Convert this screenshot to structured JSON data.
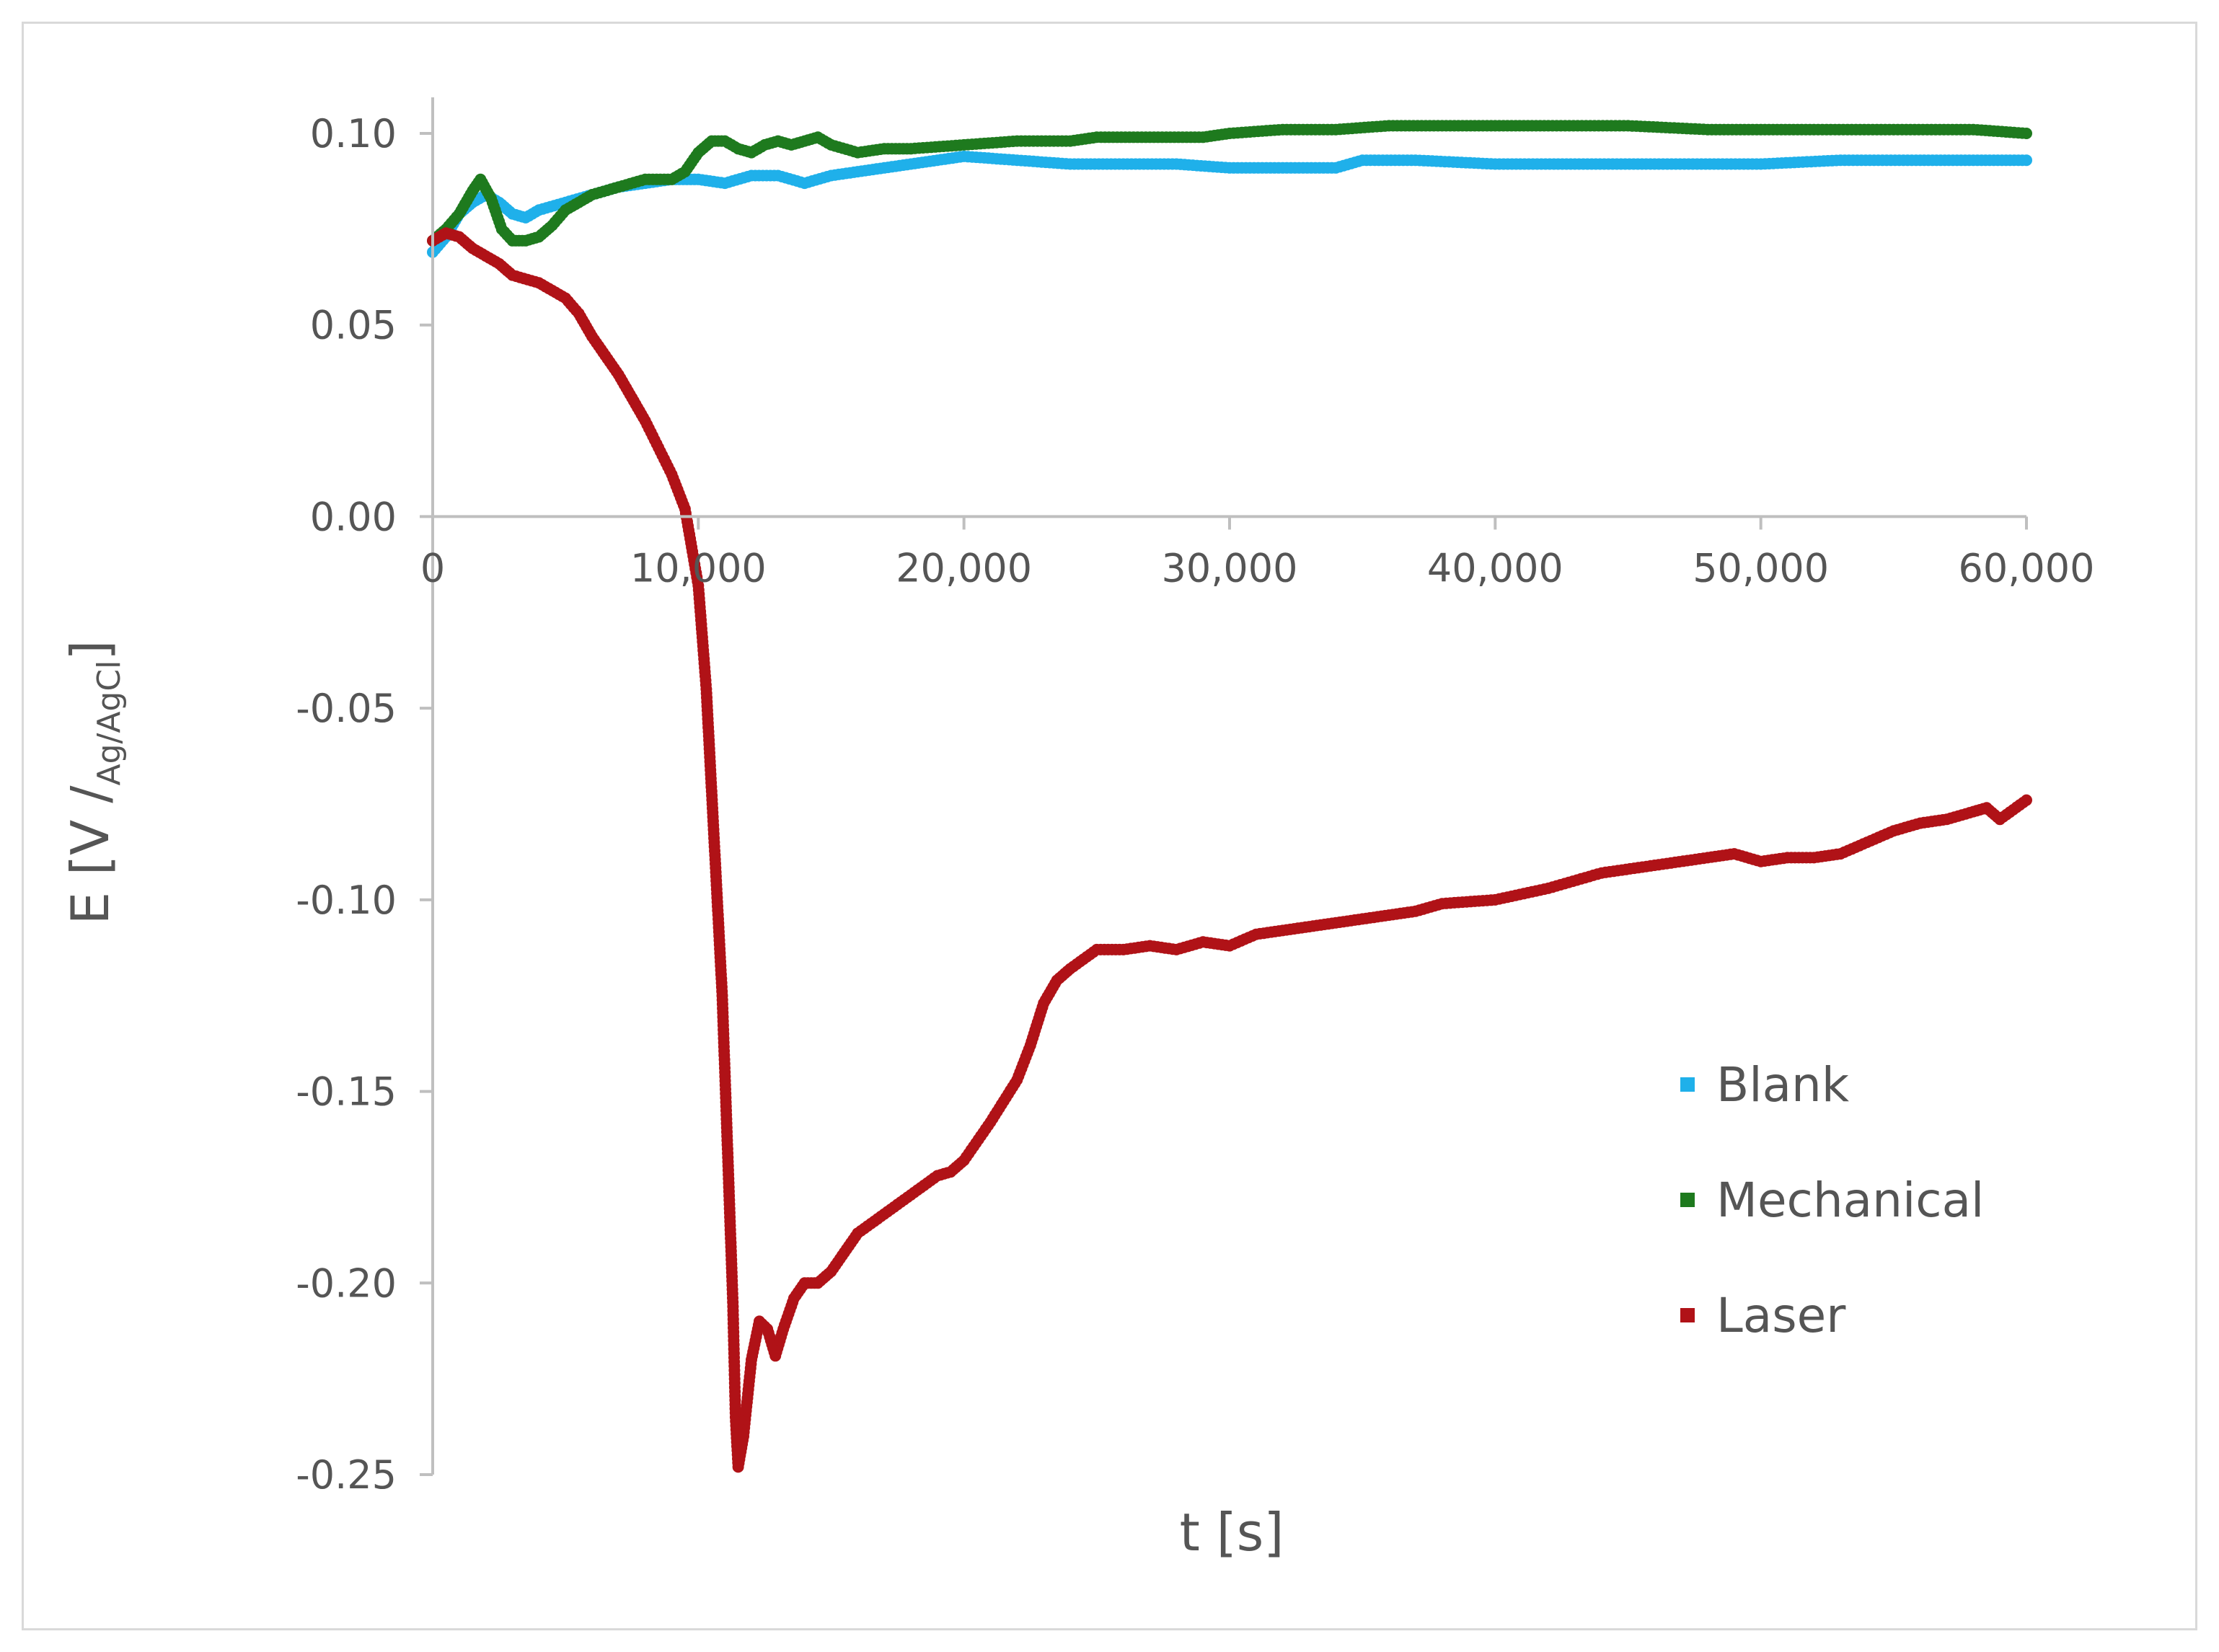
{
  "chart_data": {
    "type": "scatter",
    "xlabel": "t [s]",
    "ylabel": {
      "main": "E [V /",
      "sub": "Ag/AgCl",
      "close": "]"
    },
    "xlim": [
      0,
      60000
    ],
    "ylim": [
      -0.25,
      0.1
    ],
    "x_ticks": [
      0,
      10000,
      20000,
      30000,
      40000,
      50000,
      60000
    ],
    "x_tick_labels": [
      "0",
      "10,000",
      "20,000",
      "30,000",
      "40,000",
      "50,000",
      "60,000"
    ],
    "y_ticks": [
      0.1,
      0.05,
      0.0,
      -0.05,
      -0.1,
      -0.15,
      -0.2,
      -0.25
    ],
    "y_tick_labels": [
      "0.10",
      "0.05",
      "0.00",
      "-0.05",
      "-0.10",
      "-0.15",
      "-0.20",
      "-0.25"
    ],
    "grid": false,
    "legend_position": "bottom-right",
    "series": [
      {
        "name": "Blank",
        "color": "#1fb0ea",
        "points": [
          [
            0,
            0.069
          ],
          [
            500,
            0.073
          ],
          [
            1000,
            0.079
          ],
          [
            1500,
            0.082
          ],
          [
            2000,
            0.084
          ],
          [
            2500,
            0.082
          ],
          [
            3000,
            0.079
          ],
          [
            3500,
            0.078
          ],
          [
            4000,
            0.08
          ],
          [
            5000,
            0.082
          ],
          [
            6000,
            0.084
          ],
          [
            7000,
            0.086
          ],
          [
            8000,
            0.087
          ],
          [
            9000,
            0.088
          ],
          [
            10000,
            0.088
          ],
          [
            11000,
            0.087
          ],
          [
            12000,
            0.089
          ],
          [
            13000,
            0.089
          ],
          [
            14000,
            0.087
          ],
          [
            15000,
            0.089
          ],
          [
            16000,
            0.09
          ],
          [
            17000,
            0.091
          ],
          [
            18000,
            0.092
          ],
          [
            19000,
            0.093
          ],
          [
            20000,
            0.094
          ],
          [
            22000,
            0.093
          ],
          [
            24000,
            0.092
          ],
          [
            26000,
            0.092
          ],
          [
            28000,
            0.092
          ],
          [
            30000,
            0.091
          ],
          [
            32000,
            0.091
          ],
          [
            34000,
            0.091
          ],
          [
            35000,
            0.093
          ],
          [
            37000,
            0.093
          ],
          [
            40000,
            0.092
          ],
          [
            43000,
            0.092
          ],
          [
            46000,
            0.092
          ],
          [
            50000,
            0.092
          ],
          [
            53000,
            0.093
          ],
          [
            56000,
            0.093
          ],
          [
            58000,
            0.093
          ],
          [
            60000,
            0.093
          ]
        ]
      },
      {
        "name": "Mechanical",
        "color": "#1e7a1e",
        "points": [
          [
            0,
            0.072
          ],
          [
            500,
            0.075
          ],
          [
            1000,
            0.079
          ],
          [
            1500,
            0.085
          ],
          [
            1800,
            0.088
          ],
          [
            2200,
            0.083
          ],
          [
            2600,
            0.075
          ],
          [
            3000,
            0.072
          ],
          [
            3500,
            0.072
          ],
          [
            4000,
            0.073
          ],
          [
            4500,
            0.076
          ],
          [
            5000,
            0.08
          ],
          [
            6000,
            0.084
          ],
          [
            7000,
            0.086
          ],
          [
            8000,
            0.088
          ],
          [
            9000,
            0.088
          ],
          [
            9500,
            0.09
          ],
          [
            10000,
            0.095
          ],
          [
            10500,
            0.098
          ],
          [
            11000,
            0.098
          ],
          [
            11500,
            0.096
          ],
          [
            12000,
            0.095
          ],
          [
            12500,
            0.097
          ],
          [
            13000,
            0.098
          ],
          [
            13500,
            0.097
          ],
          [
            14000,
            0.098
          ],
          [
            14500,
            0.099
          ],
          [
            15000,
            0.097
          ],
          [
            16000,
            0.095
          ],
          [
            17000,
            0.096
          ],
          [
            18000,
            0.096
          ],
          [
            20000,
            0.097
          ],
          [
            22000,
            0.098
          ],
          [
            24000,
            0.098
          ],
          [
            25000,
            0.099
          ],
          [
            27000,
            0.099
          ],
          [
            29000,
            0.099
          ],
          [
            30000,
            0.1
          ],
          [
            32000,
            0.101
          ],
          [
            34000,
            0.101
          ],
          [
            36000,
            0.102
          ],
          [
            38000,
            0.102
          ],
          [
            40000,
            0.102
          ],
          [
            42000,
            0.102
          ],
          [
            45000,
            0.102
          ],
          [
            48000,
            0.101
          ],
          [
            50000,
            0.101
          ],
          [
            52000,
            0.101
          ],
          [
            55000,
            0.101
          ],
          [
            58000,
            0.101
          ],
          [
            60000,
            0.1
          ]
        ]
      },
      {
        "name": "Laser",
        "color": "#b01217",
        "points": [
          [
            0,
            0.072
          ],
          [
            500,
            0.074
          ],
          [
            1000,
            0.073
          ],
          [
            1500,
            0.07
          ],
          [
            2000,
            0.068
          ],
          [
            2500,
            0.066
          ],
          [
            3000,
            0.063
          ],
          [
            4000,
            0.061
          ],
          [
            5000,
            0.057
          ],
          [
            5500,
            0.053
          ],
          [
            6000,
            0.047
          ],
          [
            6500,
            0.042
          ],
          [
            7000,
            0.037
          ],
          [
            7500,
            0.031
          ],
          [
            8000,
            0.025
          ],
          [
            8500,
            0.018
          ],
          [
            9000,
            0.011
          ],
          [
            9500,
            0.002
          ],
          [
            10000,
            -0.018
          ],
          [
            10300,
            -0.045
          ],
          [
            10600,
            -0.085
          ],
          [
            10900,
            -0.125
          ],
          [
            11100,
            -0.165
          ],
          [
            11300,
            -0.205
          ],
          [
            11400,
            -0.235
          ],
          [
            11500,
            -0.248
          ],
          [
            11700,
            -0.24
          ],
          [
            12000,
            -0.22
          ],
          [
            12300,
            -0.21
          ],
          [
            12600,
            -0.212
          ],
          [
            12900,
            -0.219
          ],
          [
            13200,
            -0.212
          ],
          [
            13600,
            -0.204
          ],
          [
            14000,
            -0.2
          ],
          [
            14500,
            -0.2
          ],
          [
            15000,
            -0.197
          ],
          [
            15500,
            -0.192
          ],
          [
            16000,
            -0.187
          ],
          [
            17000,
            -0.182
          ],
          [
            18000,
            -0.177
          ],
          [
            19000,
            -0.172
          ],
          [
            19500,
            -0.171
          ],
          [
            20000,
            -0.168
          ],
          [
            21000,
            -0.158
          ],
          [
            22000,
            -0.147
          ],
          [
            22500,
            -0.138
          ],
          [
            23000,
            -0.127
          ],
          [
            23500,
            -0.121
          ],
          [
            24000,
            -0.118
          ],
          [
            25000,
            -0.113
          ],
          [
            26000,
            -0.113
          ],
          [
            27000,
            -0.112
          ],
          [
            28000,
            -0.113
          ],
          [
            29000,
            -0.111
          ],
          [
            30000,
            -0.112
          ],
          [
            31000,
            -0.109
          ],
          [
            32000,
            -0.108
          ],
          [
            33000,
            -0.107
          ],
          [
            34000,
            -0.106
          ],
          [
            35000,
            -0.105
          ],
          [
            36000,
            -0.104
          ],
          [
            37000,
            -0.103
          ],
          [
            38000,
            -0.101
          ],
          [
            40000,
            -0.1
          ],
          [
            42000,
            -0.097
          ],
          [
            44000,
            -0.093
          ],
          [
            46000,
            -0.091
          ],
          [
            48000,
            -0.089
          ],
          [
            49000,
            -0.088
          ],
          [
            50000,
            -0.09
          ],
          [
            51000,
            -0.089
          ],
          [
            52000,
            -0.089
          ],
          [
            53000,
            -0.088
          ],
          [
            54000,
            -0.085
          ],
          [
            55000,
            -0.082
          ],
          [
            56000,
            -0.08
          ],
          [
            57000,
            -0.079
          ],
          [
            58000,
            -0.077
          ],
          [
            58500,
            -0.076
          ],
          [
            59000,
            -0.079
          ],
          [
            60000,
            -0.074
          ]
        ]
      }
    ]
  }
}
